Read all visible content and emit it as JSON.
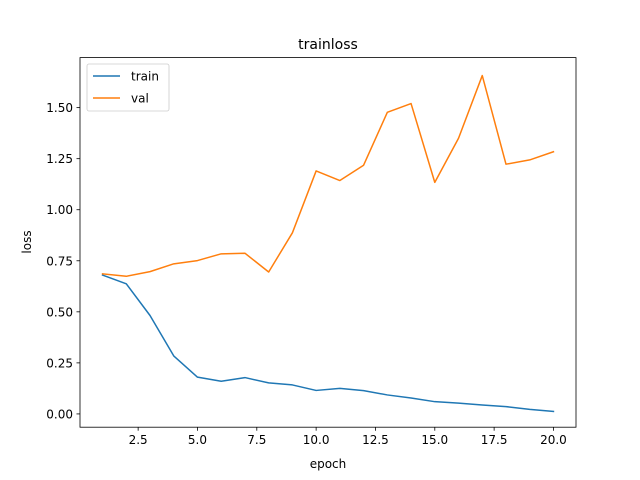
{
  "chart_data": {
    "type": "line",
    "title": "trainloss",
    "xlabel": "epoch",
    "ylabel": "loss",
    "xlim": [
      0.05,
      20.95
    ],
    "ylim": [
      -0.065,
      1.745
    ],
    "xticks": [
      2.5,
      5.0,
      7.5,
      10.0,
      12.5,
      15.0,
      17.5,
      20.0
    ],
    "xtick_labels": [
      "2.5",
      "5.0",
      "7.5",
      "10.0",
      "12.5",
      "15.0",
      "17.5",
      "20.0"
    ],
    "yticks": [
      0.0,
      0.25,
      0.5,
      0.75,
      1.0,
      1.25,
      1.5
    ],
    "ytick_labels": [
      "0.00",
      "0.25",
      "0.50",
      "0.75",
      "1.00",
      "1.25",
      "1.50"
    ],
    "grid": false,
    "legend_position": "top-left",
    "x": [
      1,
      2,
      3,
      4,
      5,
      6,
      7,
      8,
      9,
      10,
      11,
      12,
      13,
      14,
      15,
      16,
      17,
      18,
      19,
      20
    ],
    "series": [
      {
        "name": "train",
        "color": "#1f77b4",
        "values": [
          0.68,
          0.637,
          0.482,
          0.284,
          0.18,
          0.16,
          0.178,
          0.152,
          0.142,
          0.115,
          0.125,
          0.114,
          0.093,
          0.078,
          0.06,
          0.053,
          0.044,
          0.036,
          0.022,
          0.012
        ]
      },
      {
        "name": "val",
        "color": "#ff7f0e",
        "values": [
          0.686,
          0.674,
          0.697,
          0.735,
          0.751,
          0.784,
          0.787,
          0.695,
          0.887,
          1.19,
          1.143,
          1.218,
          1.477,
          1.52,
          1.134,
          1.35,
          1.657,
          1.223,
          1.244,
          1.284
        ]
      }
    ]
  }
}
